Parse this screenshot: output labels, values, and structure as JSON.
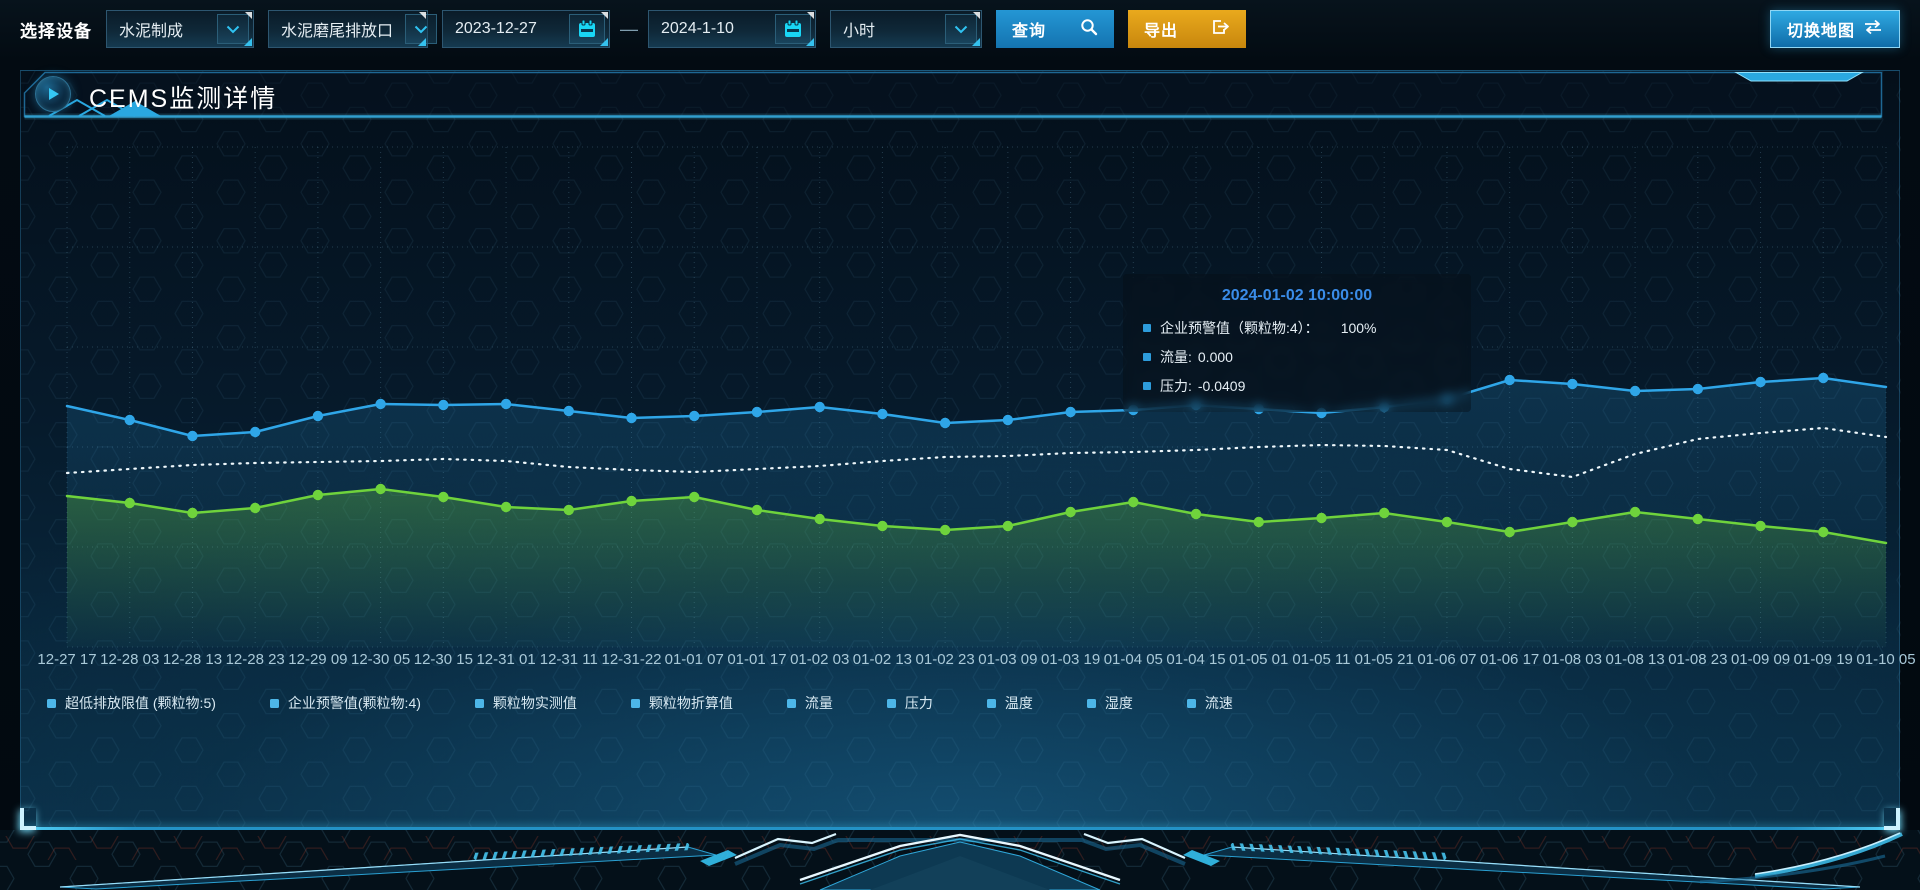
{
  "toolbar": {
    "device_label": "选择设备",
    "device_primary": "水泥制成",
    "device_outlet": "水泥磨尾排放口",
    "date_start": "2023-12-27",
    "date_separator": "—",
    "date_end": "2024-1-10",
    "interval": "小时",
    "query_label": "查询",
    "export_label": "导出",
    "switch_map_label": "切换地图"
  },
  "panel": {
    "title": "CEMS监测详情"
  },
  "tooltip": {
    "timestamp": "2024-01-02 10:00:00",
    "marker_color": "#2d9cdb",
    "items": [
      {
        "label": "企业预警值（颗粒物:4）：",
        "value": "100%",
        "wide_gap": true
      },
      {
        "label": "流量:",
        "value": "0.000",
        "wide_gap": false
      },
      {
        "label": "压力:",
        "value": "-0.0409",
        "wide_gap": false
      }
    ]
  },
  "legend": {
    "marker_color": "#4db6e8",
    "items": [
      "超低排放限值 (颗粒物:5)",
      "企业预警值(颗粒物:4)",
      "颗粒物实测值",
      "颗粒物折算值",
      "流量",
      "压力",
      "温度",
      "湿度",
      "流速"
    ]
  },
  "chart_data": {
    "type": "line",
    "title": "",
    "xlabel": "",
    "ylabel": "",
    "ylim": [
      0,
      100
    ],
    "grid": true,
    "legend_position": "bottom",
    "x": [
      "12-27 17",
      "12-28 03",
      "12-28 13",
      "12-28 23",
      "12-29 09",
      "12-30 05",
      "12-30 15",
      "12-31 01",
      "12-31 11",
      "12-31-22",
      "01-01 07",
      "01-01 17",
      "01-02 03",
      "01-02 13",
      "01-02 23",
      "01-03 09",
      "01-03 19",
      "01-04 05",
      "01-04 15",
      "01-05 01",
      "01-05 11",
      "01-05 21",
      "01-06 07",
      "01-06 17",
      "01-08 03",
      "01-08 13",
      "01-08 23",
      "01-09 09",
      "01-09 19",
      "01-10 05"
    ],
    "series": [
      {
        "name": "企业预警值(颗粒物:4)",
        "color": "#2fa6e8",
        "style": "solid",
        "markers": true,
        "area": true,
        "area_opacity": 0.18,
        "values": [
          48.2,
          45.4,
          42.2,
          43.0,
          46.2,
          48.6,
          48.4,
          48.6,
          47.2,
          45.8,
          46.2,
          47.0,
          48.0,
          46.6,
          44.8,
          45.4,
          47.0,
          47.4,
          48.4,
          47.6,
          46.8,
          48.0,
          49.6,
          53.4,
          52.6,
          51.2,
          51.6,
          53.0,
          53.8,
          52.0
        ]
      },
      {
        "name": "流量",
        "color": "#eef7fb",
        "style": "dotted",
        "markers": false,
        "area": false,
        "area_opacity": 0,
        "values": [
          34.8,
          35.6,
          36.4,
          36.8,
          37.0,
          37.2,
          37.6,
          37.2,
          36.0,
          35.4,
          35.0,
          35.6,
          36.2,
          37.2,
          38.0,
          38.2,
          38.8,
          39.0,
          39.4,
          40.0,
          40.4,
          40.2,
          39.4,
          35.6,
          34.0,
          38.6,
          41.6,
          42.8,
          43.8,
          42.0
        ]
      },
      {
        "name": "压力",
        "color": "#6fd33c",
        "style": "solid",
        "markers": true,
        "area": true,
        "area_opacity": 0.3,
        "values": [
          30.2,
          28.8,
          26.8,
          27.8,
          30.4,
          31.6,
          30.0,
          28.0,
          27.4,
          29.2,
          30.0,
          27.4,
          25.6,
          24.2,
          23.4,
          24.2,
          27.0,
          29.0,
          26.6,
          25.0,
          25.8,
          26.8,
          25.0,
          23.0,
          25.0,
          27.0,
          25.6,
          24.2,
          23.0,
          20.8
        ]
      }
    ]
  }
}
